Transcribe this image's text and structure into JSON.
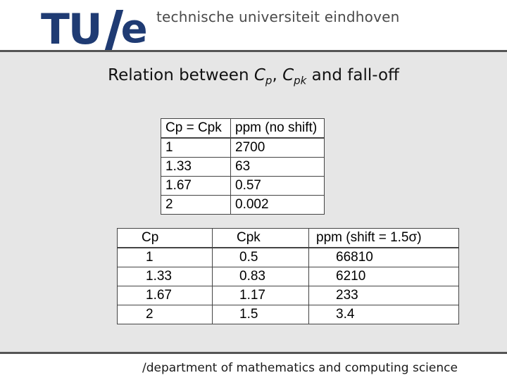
{
  "header": {
    "logo_left": "TU",
    "logo_right": "e",
    "institution": "technische universiteit eindhoven"
  },
  "slide": {
    "title_prefix": "Relation between",
    "cp_main": "C",
    "cp_sub": "p",
    "separator": ", ",
    "cpk_main": "C",
    "cpk_sub": "pk",
    "title_suffix": "and fall-off"
  },
  "table_no_shift": {
    "headers": [
      "Cp = Cpk",
      "ppm (no shift)"
    ],
    "rows": [
      [
        "1",
        "2700"
      ],
      [
        "1.33",
        "63"
      ],
      [
        "1.67",
        "0.57"
      ],
      [
        "2",
        "0.002"
      ]
    ]
  },
  "table_shift": {
    "headers": [
      "Cp",
      "Cpk",
      "ppm (shift = 1.5σ)"
    ],
    "rows": [
      [
        "1",
        "0.5",
        "66810"
      ],
      [
        "1.33",
        "0.83",
        "6210"
      ],
      [
        "1.67",
        "1.17",
        "233"
      ],
      [
        "2",
        "1.5",
        "3.4"
      ]
    ]
  },
  "footer": {
    "text": "/department of mathematics and computing science"
  }
}
